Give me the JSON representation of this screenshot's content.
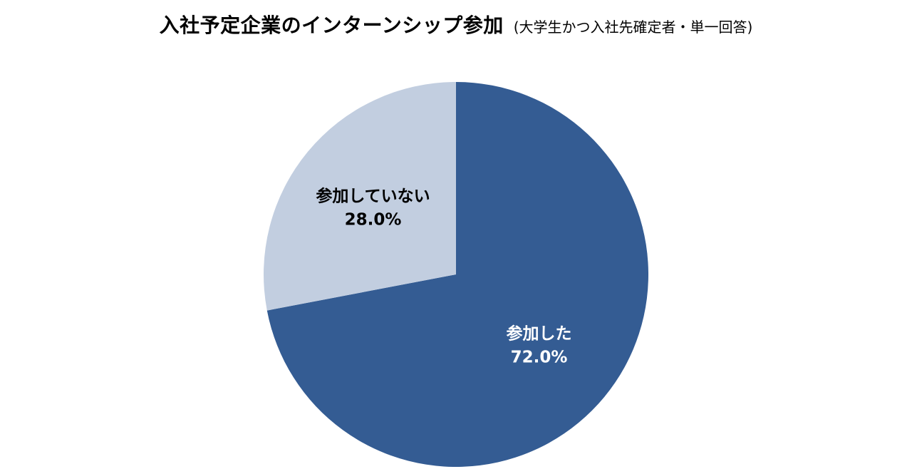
{
  "colors": {
    "participated": "#345c93",
    "not_participated": "#c2cee0",
    "label_on_dark": "#ffffff",
    "label_on_light": "#000000"
  },
  "chart_data": {
    "type": "pie",
    "title": "入社予定企業のインターンシップ参加",
    "subtitle": "(大学生かつ入社先確定者・単一回答)",
    "start_angle_deg": 0,
    "direction": "clockwise",
    "slices": [
      {
        "label": "参加した",
        "value": 72.0,
        "value_label": "72.0%",
        "color": "#345c93",
        "text_color": "#ffffff"
      },
      {
        "label": "参加していない",
        "value": 28.0,
        "value_label": "28.0%",
        "color": "#c2cee0",
        "text_color": "#000000"
      }
    ]
  }
}
